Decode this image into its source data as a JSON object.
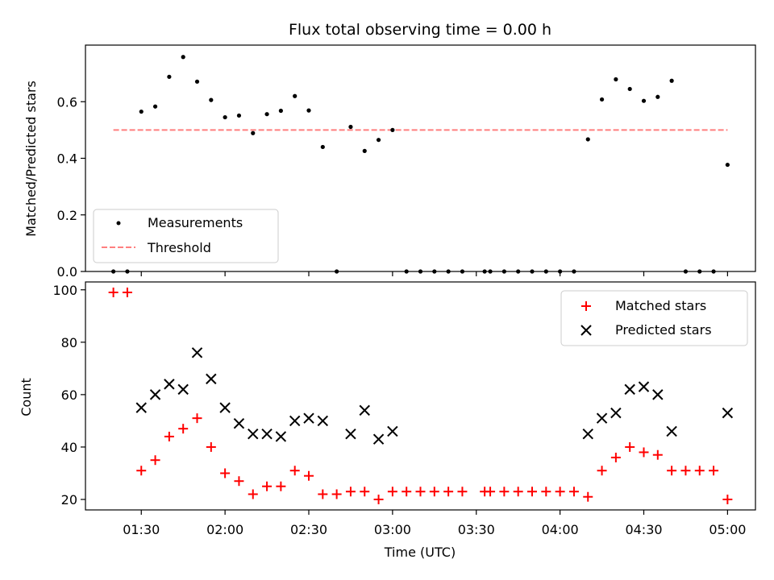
{
  "colors": {
    "measurement": "#000000",
    "threshold": "#ff7f7f",
    "matched": "#ff0000",
    "predicted": "#000000",
    "axes": "#000000",
    "legend_border": "#cccccc"
  },
  "chart_data": [
    {
      "type": "scatter",
      "title": "Flux total observing time = 0.00 h",
      "xlabel": "",
      "ylabel": "Matched/Predicted stars",
      "xlim": [
        "01:10",
        "05:10"
      ],
      "ylim": [
        0,
        0.8
      ],
      "yticks": [
        "0.0",
        "0.2",
        "0.4",
        "0.6"
      ],
      "grid": false,
      "legend_position": "lower-left",
      "legend": [
        "Measurements",
        "Threshold"
      ],
      "series": [
        {
          "name": "Measurements",
          "marker": "dot",
          "x": [
            "01:20",
            "01:25",
            "01:30",
            "01:35",
            "01:40",
            "01:45",
            "01:50",
            "01:55",
            "02:00",
            "02:05",
            "02:10",
            "02:15",
            "02:20",
            "02:25",
            "02:30",
            "02:35",
            "02:40",
            "02:45",
            "02:50",
            "02:55",
            "03:00",
            "03:05",
            "03:10",
            "03:15",
            "03:20",
            "03:25",
            "03:33",
            "03:35",
            "03:40",
            "03:45",
            "03:50",
            "03:55",
            "04:00",
            "04:05",
            "04:10",
            "04:15",
            "04:20",
            "04:25",
            "04:30",
            "04:35",
            "04:40",
            "04:45",
            "04:50",
            "04:55",
            "05:00"
          ],
          "y": [
            0,
            0,
            0.565,
            0.583,
            0.688,
            0.758,
            0.671,
            0.606,
            0.545,
            0.551,
            0.489,
            0.556,
            0.568,
            0.62,
            0.569,
            0.44,
            0,
            0.511,
            0.426,
            0.465,
            0.5,
            0,
            0,
            0,
            0,
            0,
            0,
            0,
            0,
            0,
            0,
            0,
            0,
            0,
            0.467,
            0.608,
            0.679,
            0.645,
            0.603,
            0.617,
            0.674,
            0,
            0,
            0,
            0.377
          ]
        },
        {
          "name": "Threshold",
          "style": "dashed",
          "x": [
            "01:20",
            "05:00"
          ],
          "y": [
            0.5,
            0.5
          ]
        }
      ]
    },
    {
      "type": "scatter",
      "title": "",
      "xlabel": "Time (UTC)",
      "ylabel": "Count",
      "xlim": [
        "01:10",
        "05:10"
      ],
      "xticks": [
        "01:30",
        "02:00",
        "02:30",
        "03:00",
        "03:30",
        "04:00",
        "04:30",
        "05:00"
      ],
      "ylim": [
        16,
        103
      ],
      "yticks": [
        "20",
        "40",
        "60",
        "80",
        "100"
      ],
      "grid": false,
      "legend_position": "upper-right",
      "legend": [
        "Matched stars",
        "Predicted stars"
      ],
      "series": [
        {
          "name": "Matched stars",
          "marker": "plus",
          "x": [
            "01:20",
            "01:25",
            "01:30",
            "01:35",
            "01:40",
            "01:45",
            "01:50",
            "01:55",
            "02:00",
            "02:05",
            "02:10",
            "02:15",
            "02:20",
            "02:25",
            "02:30",
            "02:35",
            "02:40",
            "02:45",
            "02:50",
            "02:55",
            "03:00",
            "03:05",
            "03:10",
            "03:15",
            "03:20",
            "03:25",
            "03:33",
            "03:35",
            "03:40",
            "03:45",
            "03:50",
            "03:55",
            "04:00",
            "04:05",
            "04:10",
            "04:15",
            "04:20",
            "04:25",
            "04:30",
            "04:35",
            "04:40",
            "04:45",
            "04:50",
            "04:55",
            "05:00"
          ],
          "y": [
            99,
            99,
            31,
            35,
            44,
            47,
            51,
            40,
            30,
            27,
            22,
            25,
            25,
            31,
            29,
            22,
            22,
            23,
            23,
            20,
            23,
            23,
            23,
            23,
            23,
            23,
            23,
            23,
            23,
            23,
            23,
            23,
            23,
            23,
            21,
            31,
            36,
            40,
            38,
            37,
            31,
            31,
            31,
            31,
            20
          ]
        },
        {
          "name": "Predicted stars",
          "marker": "x",
          "x": [
            "01:30",
            "01:35",
            "01:40",
            "01:45",
            "01:50",
            "01:55",
            "02:00",
            "02:05",
            "02:10",
            "02:15",
            "02:20",
            "02:25",
            "02:30",
            "02:35",
            "02:45",
            "02:50",
            "02:55",
            "03:00",
            "04:10",
            "04:15",
            "04:20",
            "04:25",
            "04:30",
            "04:35",
            "04:40",
            "05:00"
          ],
          "y": [
            55,
            60,
            64,
            62,
            76,
            66,
            55,
            49,
            45,
            45,
            44,
            50,
            51,
            50,
            45,
            54,
            43,
            46,
            45,
            51,
            53,
            62,
            63,
            60,
            46,
            53
          ]
        }
      ]
    }
  ]
}
